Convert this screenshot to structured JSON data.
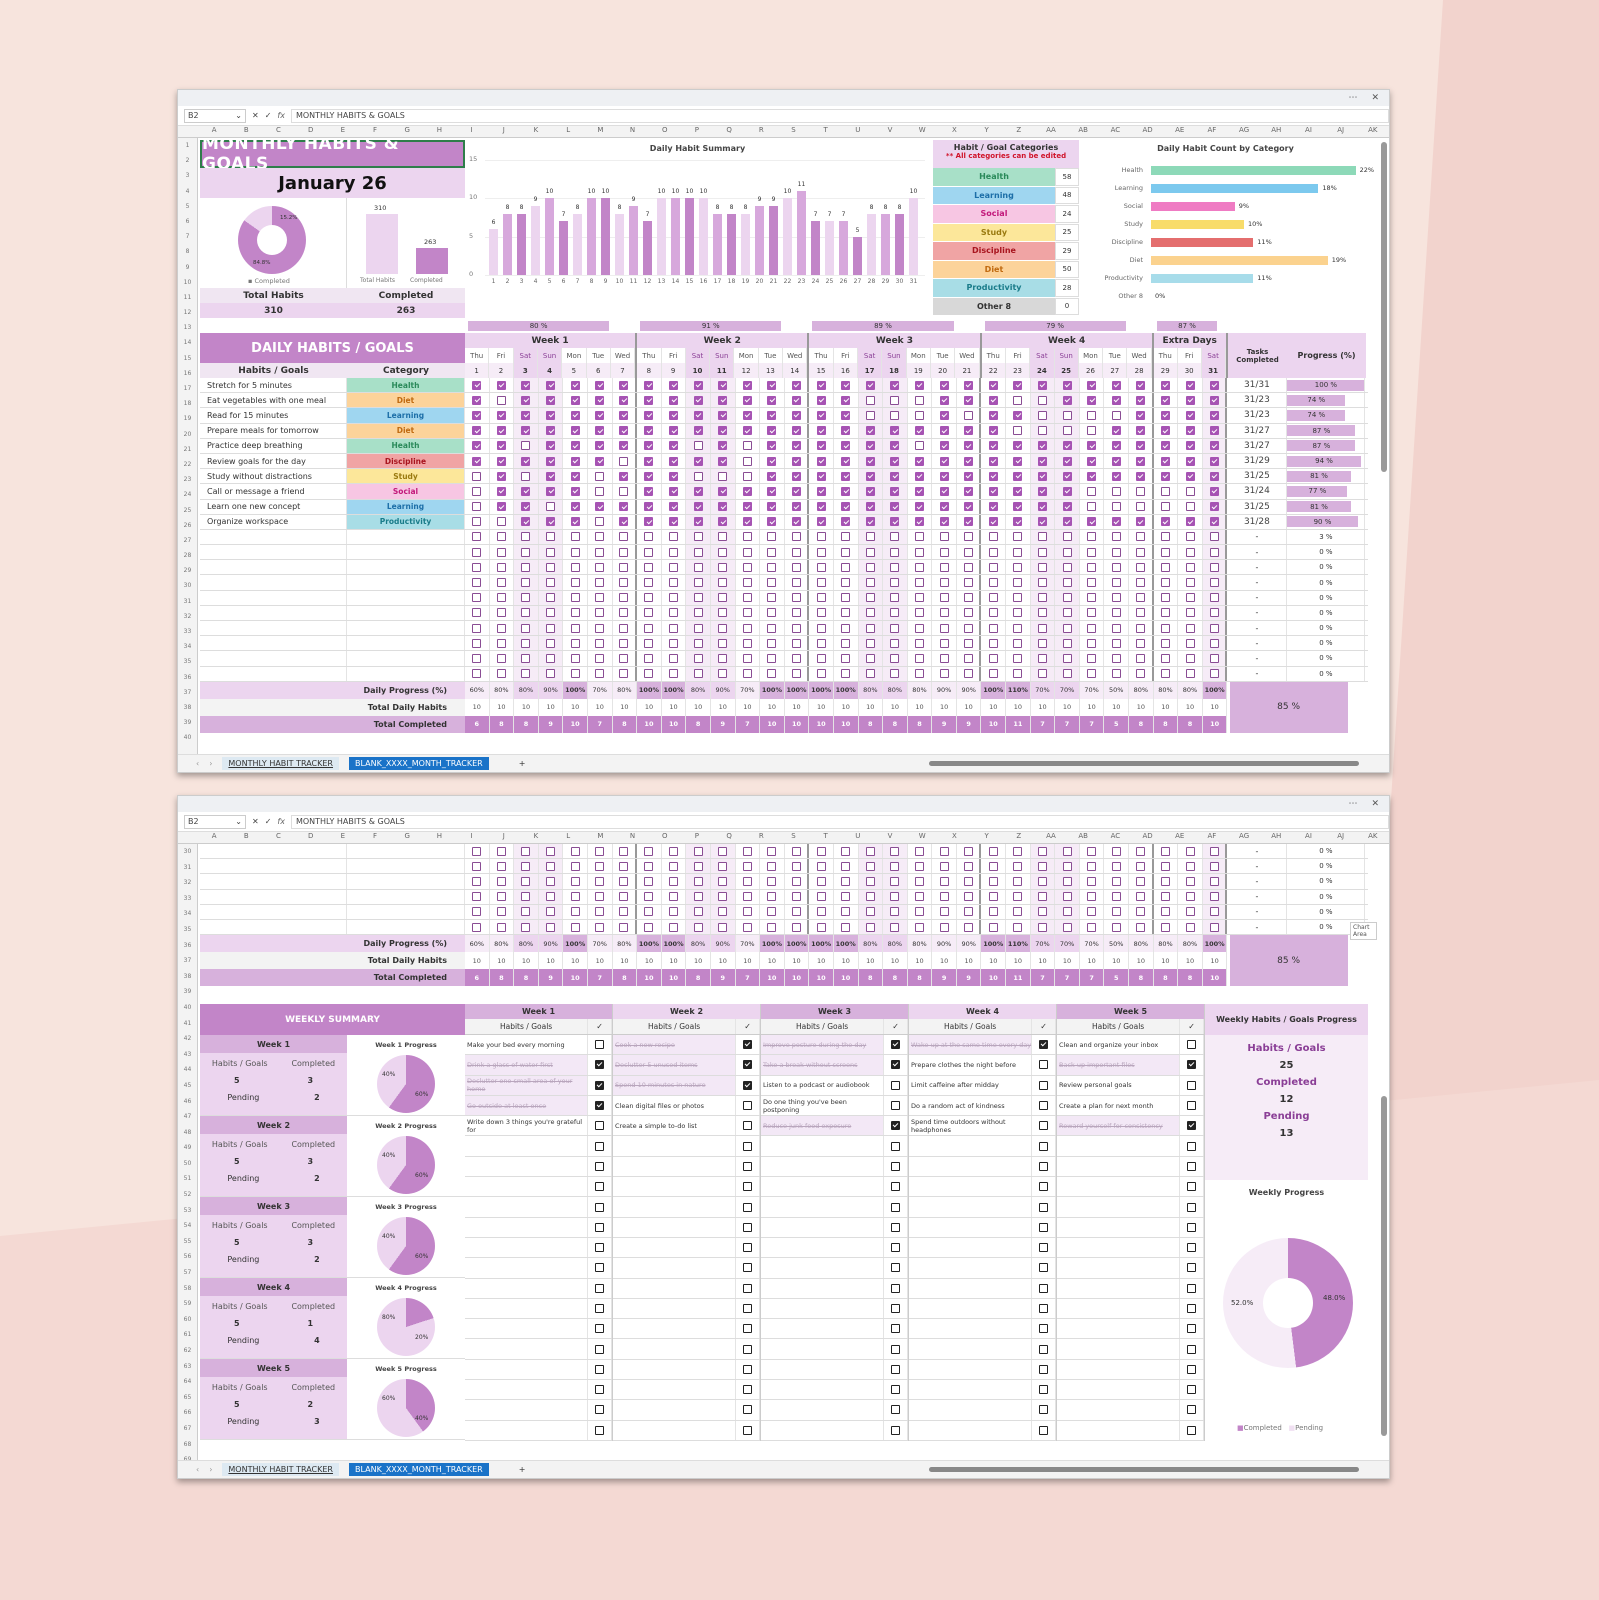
{
  "window": {
    "more_icon": "⋯",
    "close_icon": "✕"
  },
  "formula_bar": {
    "name_box": "B2",
    "fx": "fx",
    "value": "MONTHLY HABITS & GOALS"
  },
  "columns": [
    "A",
    "B",
    "C",
    "D",
    "E",
    "F",
    "G",
    "H",
    "I",
    "J",
    "K",
    "L",
    "M",
    "N",
    "O",
    "P",
    "Q",
    "R",
    "S",
    "T",
    "U",
    "V",
    "W",
    "X",
    "Y",
    "Z",
    "AA",
    "AB",
    "AC",
    "AD",
    "AE",
    "AF",
    "AG",
    "AH",
    "AI",
    "AJ",
    "AK"
  ],
  "sheet_tabs": [
    {
      "label": "MONTHLY HABIT TRACKER",
      "active": true
    },
    {
      "label": "BLANK_XXXX_MONTH_TRACKER",
      "active": false
    }
  ],
  "add_sheet": "+",
  "header": {
    "title": "MONTHLY HABITS & GOALS",
    "month": "January 26"
  },
  "summary": {
    "total_label": "Total Habits",
    "total_value": "310",
    "completed_label": "Completed",
    "completed_value": "263",
    "donut": {
      "completed_pct": "84.8%",
      "pending_pct": "15.2%",
      "legend": "Completed"
    },
    "bar": {
      "labels": [
        "Total Habits",
        "Completed"
      ],
      "values": [
        "310",
        "263"
      ]
    }
  },
  "chart_data": [
    {
      "type": "bar",
      "title": "Daily Habit Summary",
      "categories": [
        "1",
        "2",
        "3",
        "4",
        "5",
        "6",
        "7",
        "8",
        "9",
        "10",
        "11",
        "12",
        "13",
        "14",
        "15",
        "16",
        "17",
        "18",
        "19",
        "20",
        "21",
        "22",
        "23",
        "24",
        "25",
        "26",
        "27",
        "28",
        "29",
        "30",
        "31"
      ],
      "values": [
        6,
        8,
        8,
        9,
        10,
        7,
        8,
        10,
        10,
        8,
        9,
        7,
        10,
        10,
        10,
        10,
        8,
        8,
        8,
        9,
        9,
        10,
        11,
        7,
        7,
        7,
        5,
        8,
        8,
        8,
        10
      ],
      "ylim": [
        0,
        15
      ],
      "yticks": [
        0,
        5,
        10,
        15
      ]
    },
    {
      "type": "bar",
      "orientation": "horizontal",
      "title": "Daily Habit Count by Category",
      "categories": [
        "Health",
        "Learning",
        "Social",
        "Study",
        "Discipline",
        "Diet",
        "Productivity",
        "Other 8"
      ],
      "values": [
        22,
        18,
        9,
        10,
        11,
        19,
        11,
        0
      ],
      "labels": [
        "22%",
        "18%",
        "9%",
        "10%",
        "11%",
        "19%",
        "11%",
        "0%"
      ]
    },
    {
      "type": "pie",
      "title": "Weekly Progress",
      "categories": [
        "Completed",
        "Pending"
      ],
      "values": [
        48.0,
        52.0
      ],
      "labels": [
        "48.0%",
        "52.0%"
      ]
    }
  ],
  "categories": {
    "title": "Habit / Goal Categories",
    "note": "** All categories can be edited",
    "items": [
      {
        "name": "Health",
        "count": "58",
        "bg": "#a8e0c8",
        "fg": "#2a8a5a"
      },
      {
        "name": "Learning",
        "count": "48",
        "bg": "#9fd6f0",
        "fg": "#1d6fa8"
      },
      {
        "name": "Social",
        "count": "24",
        "bg": "#f7c6e3",
        "fg": "#c2187a"
      },
      {
        "name": "Study",
        "count": "25",
        "bg": "#fce79a",
        "fg": "#9a7a10"
      },
      {
        "name": "Discipline",
        "count": "29",
        "bg": "#f0a4a4",
        "fg": "#a8141e"
      },
      {
        "name": "Diet",
        "count": "50",
        "bg": "#fcd39a",
        "fg": "#c06a10"
      },
      {
        "name": "Productivity",
        "count": "28",
        "bg": "#a8dde6",
        "fg": "#1a7c8a"
      },
      {
        "name": "Other 8",
        "count": "0",
        "bg": "#d8d8d8",
        "fg": "#333"
      }
    ]
  },
  "weeks": [
    {
      "label": "Week 1",
      "pct": "80 %",
      "days": [
        "Thu",
        "Fri",
        "Sat",
        "Sun",
        "Mon",
        "Tue",
        "Wed"
      ],
      "dates": [
        "1",
        "2",
        "3",
        "4",
        "5",
        "6",
        "7"
      ]
    },
    {
      "label": "Week 2",
      "pct": "91 %",
      "days": [
        "Thu",
        "Fri",
        "Sat",
        "Sun",
        "Mon",
        "Tue",
        "Wed"
      ],
      "dates": [
        "8",
        "9",
        "10",
        "11",
        "12",
        "13",
        "14"
      ]
    },
    {
      "label": "Week 3",
      "pct": "89 %",
      "days": [
        "Thu",
        "Fri",
        "Sat",
        "Sun",
        "Mon",
        "Tue",
        "Wed"
      ],
      "dates": [
        "15",
        "16",
        "17",
        "18",
        "19",
        "20",
        "21"
      ]
    },
    {
      "label": "Week 4",
      "pct": "79 %",
      "days": [
        "Thu",
        "Fri",
        "Sat",
        "Sun",
        "Mon",
        "Tue",
        "Wed"
      ],
      "dates": [
        "22",
        "23",
        "24",
        "25",
        "26",
        "27",
        "28"
      ]
    },
    {
      "label": "Extra Days",
      "pct": "87 %",
      "days": [
        "Thu",
        "Fri",
        "Sat"
      ],
      "dates": [
        "29",
        "30",
        "31"
      ]
    }
  ],
  "daily": {
    "section_title": "DAILY HABITS / GOALS",
    "col_habit": "Habits / Goals",
    "col_category": "Category",
    "col_tasks": "Tasks Completed",
    "col_progress": "Progress (%)",
    "habits": [
      {
        "name": "Stretch for 5 minutes",
        "category": "Health",
        "tasks": "31/31",
        "progress": "100 %",
        "pct": 100,
        "checks": "1111111111111111111111111111111"
      },
      {
        "name": "Eat vegetables with one meal",
        "category": "Diet",
        "tasks": "31/23",
        "progress": "74 %",
        "pct": 74,
        "checks": "1011111111111111000111001111111"
      },
      {
        "name": "Read for 15 minutes",
        "category": "Learning",
        "tasks": "31/23",
        "progress": "74 %",
        "pct": 74,
        "checks": "1111111111111111000101100001111"
      },
      {
        "name": "Prepare meals for tomorrow",
        "category": "Diet",
        "tasks": "31/27",
        "progress": "87 %",
        "pct": 87,
        "checks": "1111111111111111111111000011111"
      },
      {
        "name": "Practice deep breathing",
        "category": "Health",
        "tasks": "31/27",
        "progress": "87 %",
        "pct": 87,
        "checks": "1101111110101111110111111111111"
      },
      {
        "name": "Review goals for the day",
        "category": "Discipline",
        "tasks": "31/29",
        "progress": "94 %",
        "pct": 94,
        "checks": "1111110111101111111111111111111"
      },
      {
        "name": "Study without distractions",
        "category": "Study",
        "tasks": "31/25",
        "progress": "81 %",
        "pct": 81,
        "checks": "0101101110001111111111111111111"
      },
      {
        "name": "Call or message a friend",
        "category": "Social",
        "tasks": "31/24",
        "progress": "77 %",
        "pct": 77,
        "checks": "0111100111111111111111111000001"
      },
      {
        "name": "Learn one new concept",
        "category": "Learning",
        "tasks": "31/25",
        "progress": "81 %",
        "pct": 81,
        "checks": "0110111111111111111111111000001"
      },
      {
        "name": "Organize workspace",
        "category": "Productivity",
        "tasks": "31/28",
        "progress": "90 %",
        "pct": 90,
        "checks": "0011101111111111111111111111111"
      }
    ],
    "empty_rows": [
      {
        "tasks": "-",
        "progress": "3 %"
      },
      {
        "tasks": "-",
        "progress": "0 %"
      },
      {
        "tasks": "-",
        "progress": "0 %"
      },
      {
        "tasks": "-",
        "progress": "0 %"
      },
      {
        "tasks": "-",
        "progress": "0 %"
      },
      {
        "tasks": "-",
        "progress": "0 %"
      },
      {
        "tasks": "-",
        "progress": "0 %"
      },
      {
        "tasks": "-",
        "progress": "0 %"
      },
      {
        "tasks": "-",
        "progress": "0 %"
      },
      {
        "tasks": "-",
        "progress": "0 %"
      }
    ],
    "footer": {
      "daily_progress_label": "Daily Progress (%)",
      "daily_progress": [
        "60%",
        "80%",
        "80%",
        "90%",
        "100%",
        "70%",
        "80%",
        "100%",
        "100%",
        "80%",
        "90%",
        "70%",
        "100%",
        "100%",
        "100%",
        "100%",
        "80%",
        "80%",
        "80%",
        "90%",
        "90%",
        "100%",
        "110%",
        "70%",
        "70%",
        "70%",
        "50%",
        "80%",
        "80%",
        "80%",
        "100%"
      ],
      "total_daily_label": "Total Daily Habits",
      "total_daily": [
        "10",
        "10",
        "10",
        "10",
        "10",
        "10",
        "10",
        "10",
        "10",
        "10",
        "10",
        "10",
        "10",
        "10",
        "10",
        "10",
        "10",
        "10",
        "10",
        "10",
        "10",
        "10",
        "10",
        "10",
        "10",
        "10",
        "10",
        "10",
        "10",
        "10",
        "10"
      ],
      "total_completed_label": "Total Completed",
      "total_completed": [
        "6",
        "8",
        "8",
        "9",
        "10",
        "7",
        "8",
        "10",
        "10",
        "8",
        "9",
        "7",
        "10",
        "10",
        "10",
        "10",
        "8",
        "8",
        "8",
        "9",
        "9",
        "10",
        "11",
        "7",
        "7",
        "7",
        "5",
        "8",
        "8",
        "8",
        "10"
      ],
      "overall": "85 %"
    }
  },
  "weekly": {
    "title": "WEEKLY SUMMARY",
    "cards": [
      {
        "week": "Week 1",
        "habits_label": "Habits / Goals",
        "completed_label": "Completed",
        "habits": "5",
        "completed": "3",
        "pending_label": "Pending",
        "pending": "2",
        "chart_title": "Week 1 Progress",
        "done_pct": "60%",
        "pend_pct": "40%",
        "done": 60
      },
      {
        "week": "Week 2",
        "habits_label": "Habits / Goals",
        "completed_label": "Completed",
        "habits": "5",
        "completed": "3",
        "pending_label": "Pending",
        "pending": "2",
        "chart_title": "Week 2 Progress",
        "done_pct": "60%",
        "pend_pct": "40%",
        "done": 60
      },
      {
        "week": "Week 3",
        "habits_label": "Habits / Goals",
        "completed_label": "Completed",
        "habits": "5",
        "completed": "3",
        "pending_label": "Pending",
        "pending": "2",
        "chart_title": "Week 3 Progress",
        "done_pct": "60%",
        "pend_pct": "40%",
        "done": 60
      },
      {
        "week": "Week 4",
        "habits_label": "Habits / Goals",
        "completed_label": "Completed",
        "habits": "5",
        "completed": "1",
        "pending_label": "Pending",
        "pending": "4",
        "chart_title": "Week 4 Progress",
        "done_pct": "20%",
        "pend_pct": "80%",
        "done": 20
      },
      {
        "week": "Week 5",
        "habits_label": "Habits / Goals",
        "completed_label": "Completed",
        "habits": "5",
        "completed": "2",
        "pending_label": "Pending",
        "pending": "3",
        "chart_title": "Week 5 Progress",
        "done_pct": "40%",
        "pend_pct": "60%",
        "done": 40
      }
    ],
    "lists": [
      {
        "week": "Week 1",
        "col": "Habits / Goals",
        "check": "✓",
        "items": [
          {
            "text": "Make your bed every morning",
            "done": false
          },
          {
            "text": "Drink a glass of water first",
            "done": true
          },
          {
            "text": "Declutter one small area of your home",
            "done": true
          },
          {
            "text": "Go outside at least once",
            "done": true
          },
          {
            "text": "Write down 3 things you're grateful for",
            "done": false
          }
        ]
      },
      {
        "week": "Week 2",
        "col": "Habits / Goals",
        "check": "✓",
        "items": [
          {
            "text": "Cook a new recipe",
            "done": true
          },
          {
            "text": "Declutter 5 unused items",
            "done": true
          },
          {
            "text": "Spend 10 minutes in nature",
            "done": true
          },
          {
            "text": "Clean digital files or photos",
            "done": false
          },
          {
            "text": "Create a simple to-do list",
            "done": false
          }
        ]
      },
      {
        "week": "Week 3",
        "col": "Habits / Goals",
        "check": "✓",
        "items": [
          {
            "text": "Improve posture during the day",
            "done": true
          },
          {
            "text": "Take a break without screens",
            "done": true
          },
          {
            "text": "Listen to a podcast or audiobook",
            "done": false
          },
          {
            "text": "Do one thing you've been postponing",
            "done": false
          },
          {
            "text": "Reduce junk food exposure",
            "done": true
          }
        ]
      },
      {
        "week": "Week 4",
        "col": "Habits / Goals",
        "check": "✓",
        "items": [
          {
            "text": "Wake up at the same time every day",
            "done": true
          },
          {
            "text": "Prepare clothes the night before",
            "done": false
          },
          {
            "text": "Limit caffeine after midday",
            "done": false
          },
          {
            "text": "Do a random act of kindness",
            "done": false
          },
          {
            "text": "Spend time outdoors without headphones",
            "done": false
          }
        ]
      },
      {
        "week": "Week 5",
        "col": "Habits / Goals",
        "check": "✓",
        "items": [
          {
            "text": "Clean and organize your inbox",
            "done": false
          },
          {
            "text": "Back up important files",
            "done": true
          },
          {
            "text": "Review personal goals",
            "done": false
          },
          {
            "text": "Create a plan for next month",
            "done": false
          },
          {
            "text": "Reward yourself for consistency",
            "done": true
          }
        ]
      }
    ],
    "progress": {
      "title": "Weekly Habits / Goals Progress",
      "habits_label": "Habits / Goals",
      "habits": "25",
      "completed_label": "Completed",
      "completed": "12",
      "pending_label": "Pending",
      "pending": "13",
      "chart_title": "Weekly Progress",
      "completed_pct": "48.0%",
      "pending_pct": "52.0%",
      "legend_completed": "Completed",
      "legend_pending": "Pending"
    }
  },
  "tooltip": "Chart Area"
}
